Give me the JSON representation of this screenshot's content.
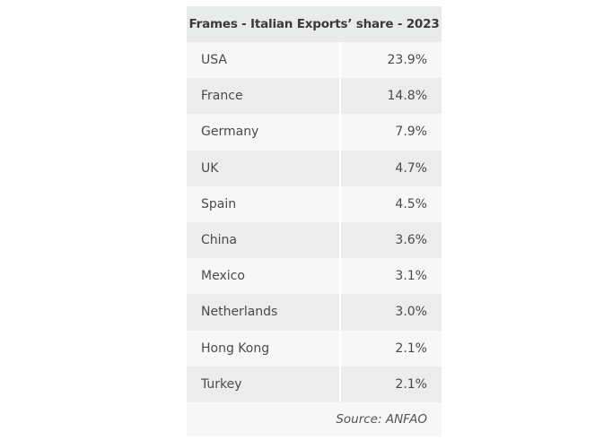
{
  "chart_data": {
    "type": "table",
    "title": "Frames - Italian Exports’ share - 2023",
    "rows": [
      {
        "country": "USA",
        "share": "23.9%"
      },
      {
        "country": "France",
        "share": "14.8%"
      },
      {
        "country": "Germany",
        "share": "7.9%"
      },
      {
        "country": "UK",
        "share": "4.7%"
      },
      {
        "country": "Spain",
        "share": "4.5%"
      },
      {
        "country": "China",
        "share": "3.6%"
      },
      {
        "country": "Mexico",
        "share": "3.1%"
      },
      {
        "country": "Netherlands",
        "share": "3.0%"
      },
      {
        "country": "Hong Kong",
        "share": "2.1%"
      },
      {
        "country": "Turkey",
        "share": "2.1%"
      }
    ],
    "source": "Source: ANFAO"
  }
}
